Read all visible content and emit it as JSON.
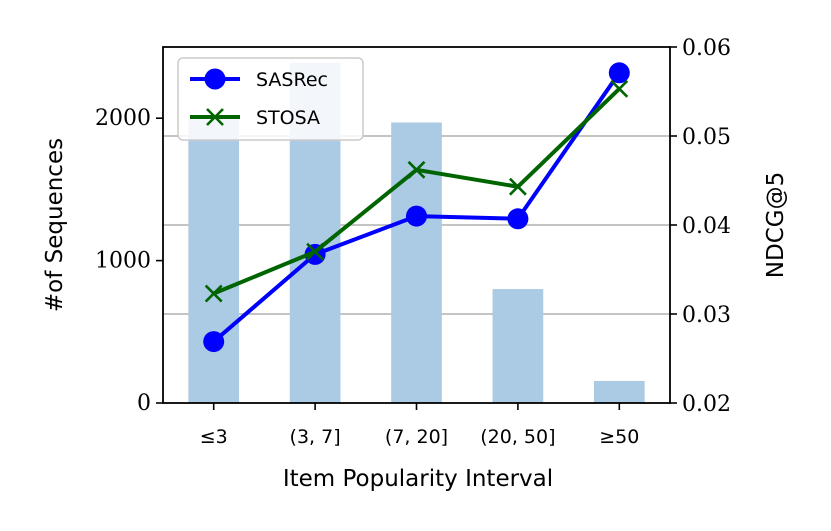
{
  "chart_data": {
    "type": "bar+line",
    "categories": [
      "≤3",
      "(3, 7]",
      "(7, 20]",
      "(20, 50]",
      "≥50"
    ],
    "xlabel": "Item Popularity Interval",
    "bars": {
      "axis": "left",
      "ylabel": "#of Sequences",
      "values": [
        2000,
        2390,
        1970,
        800,
        155
      ],
      "color": "#abcae3",
      "ylim": [
        0,
        2500
      ],
      "yticks": [
        0,
        1000,
        2000
      ],
      "ytick_labels": [
        "0",
        "1000",
        "2000"
      ]
    },
    "series": [
      {
        "name": "SASRec",
        "values": [
          0.0269,
          0.0367,
          0.041,
          0.0407,
          0.0571
        ],
        "color": "#0000ff",
        "marker": "circle"
      },
      {
        "name": "STOSA",
        "values": [
          0.0323,
          0.037,
          0.0462,
          0.0443,
          0.0553
        ],
        "color": "#006400",
        "marker": "x"
      }
    ],
    "right_axis": {
      "ylabel": "NDCG@5",
      "ylim": [
        0.02,
        0.06
      ],
      "yticks": [
        0.02,
        0.03,
        0.04,
        0.05,
        0.06
      ],
      "ytick_labels": [
        "0.02",
        "0.03",
        "0.04",
        "0.05",
        "0.06"
      ]
    },
    "grid": "horizontal (right axis)",
    "grid_color": "#b0b0b0",
    "legend_position": "top-left",
    "left_label_color": "#abcae3"
  }
}
